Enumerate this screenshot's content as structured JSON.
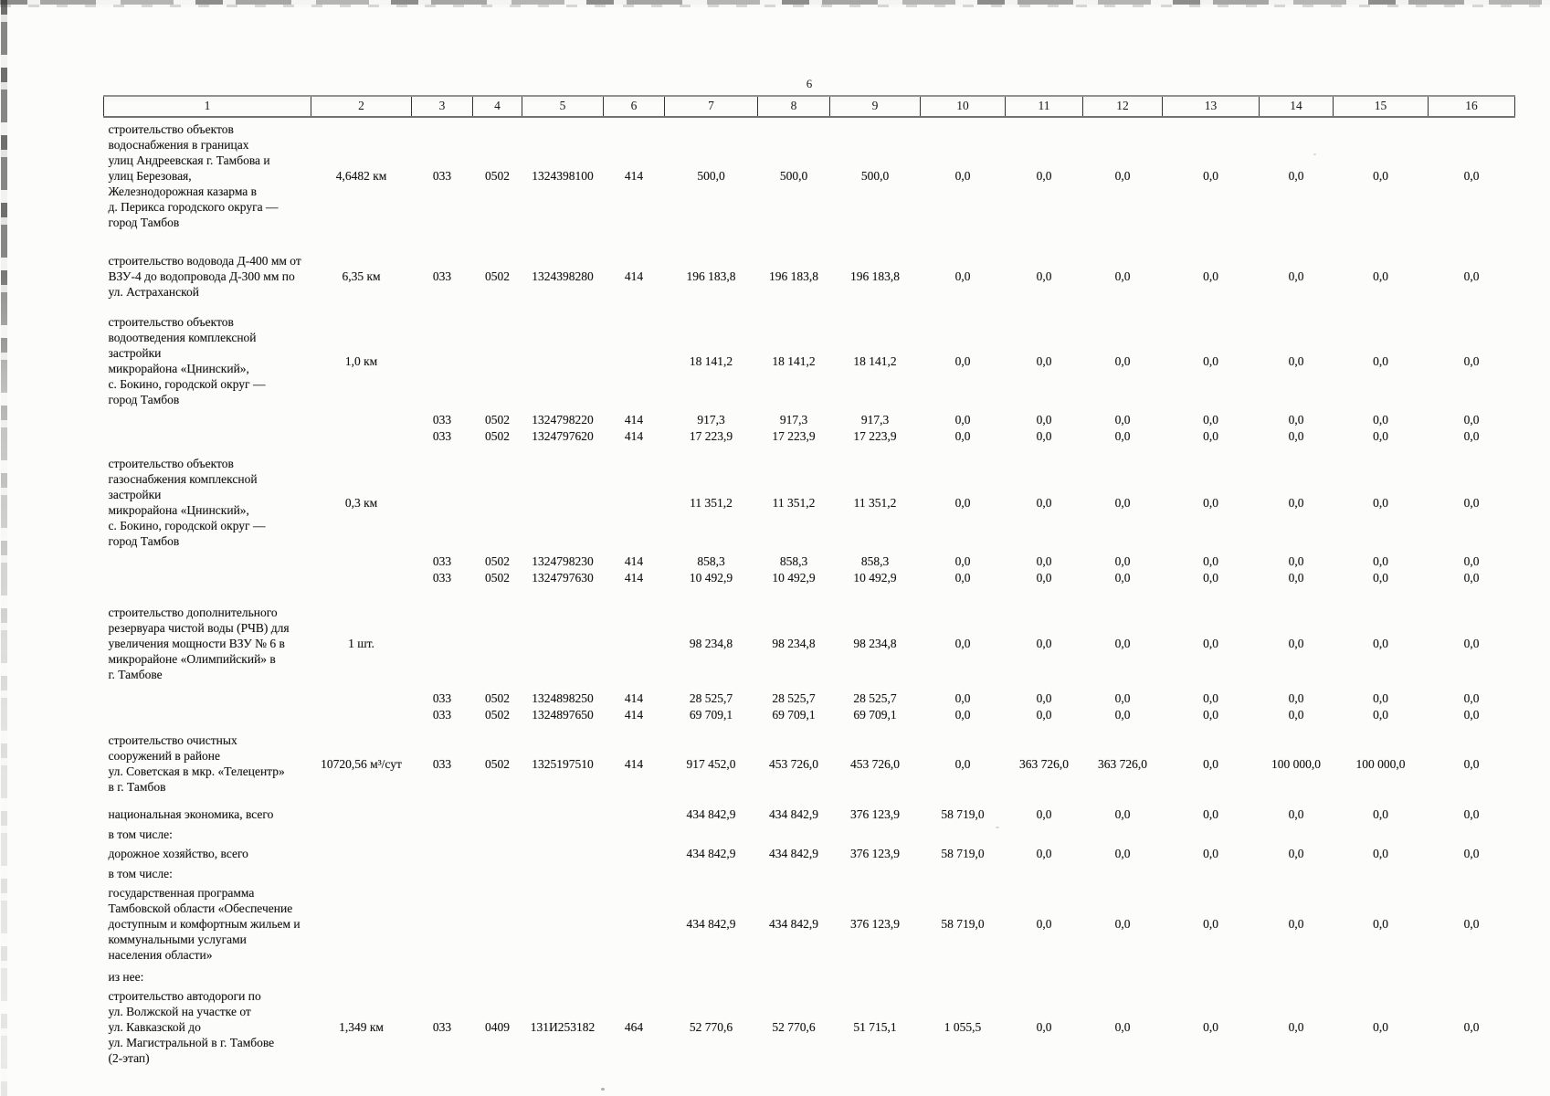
{
  "page": {
    "number": "6"
  },
  "table": {
    "column_headers": [
      "1",
      "2",
      "3",
      "4",
      "5",
      "6",
      "7",
      "8",
      "9",
      "10",
      "11",
      "12",
      "13",
      "14",
      "15",
      "16"
    ],
    "rows": [
      {
        "name": "строительство объектов\nводоснабжения в границах\nулиц Андреевская г. Тамбова и\nулиц Березовая,\nЖелезнодорожная казарма в\nд. Перикса городского округа —\nгород Тамбов",
        "qty": "4,6482 км",
        "codes": [
          "033",
          "0502",
          "1324398100",
          "414"
        ],
        "values": [
          "500,0",
          "500,0",
          "500,0",
          "0,0",
          "0,0",
          "0,0",
          "0,0",
          "0,0",
          "0,0",
          "0,0"
        ]
      },
      {
        "name": "строительство водовода Д-400 мм от\nВЗУ-4 до водопровода Д-300 мм по\nул. Астраханской",
        "qty": "6,35 км",
        "codes": [
          "033",
          "0502",
          "1324398280",
          "414"
        ],
        "values": [
          "196 183,8",
          "196 183,8",
          "196 183,8",
          "0,0",
          "0,0",
          "0,0",
          "0,0",
          "0,0",
          "0,0",
          "0,0"
        ]
      },
      {
        "name": "строительство объектов\nводоотведения комплексной\nзастройки\nмикрорайона «Цнинский»,\nс. Бокино, городской округ —\nгород Тамбов",
        "qty": "1,0 км",
        "codes": null,
        "values": [
          "18 141,2",
          "18 141,2",
          "18 141,2",
          "0,0",
          "0,0",
          "0,0",
          "0,0",
          "0,0",
          "0,0",
          "0,0"
        ]
      },
      {
        "name": null,
        "qty": null,
        "codes": [
          "033",
          "0502",
          "1324798220",
          "414"
        ],
        "values": [
          "917,3",
          "917,3",
          "917,3",
          "0,0",
          "0,0",
          "0,0",
          "0,0",
          "0,0",
          "0,0",
          "0,0"
        ]
      },
      {
        "name": null,
        "qty": null,
        "codes": [
          "033",
          "0502",
          "1324797620",
          "414"
        ],
        "values": [
          "17 223,9",
          "17 223,9",
          "17 223,9",
          "0,0",
          "0,0",
          "0,0",
          "0,0",
          "0,0",
          "0,0",
          "0,0"
        ]
      },
      {
        "name": "строительство объектов\nгазоснабжения комплексной\nзастройки\nмикрорайона «Цнинский»,\nс. Бокино, городской округ —\nгород Тамбов",
        "qty": "0,3 км",
        "codes": null,
        "values": [
          "11 351,2",
          "11 351,2",
          "11 351,2",
          "0,0",
          "0,0",
          "0,0",
          "0,0",
          "0,0",
          "0,0",
          "0,0"
        ]
      },
      {
        "name": null,
        "qty": null,
        "codes": [
          "033",
          "0502",
          "1324798230",
          "414"
        ],
        "values": [
          "858,3",
          "858,3",
          "858,3",
          "0,0",
          "0,0",
          "0,0",
          "0,0",
          "0,0",
          "0,0",
          "0,0"
        ]
      },
      {
        "name": null,
        "qty": null,
        "codes": [
          "033",
          "0502",
          "1324797630",
          "414"
        ],
        "values": [
          "10 492,9",
          "10 492,9",
          "10 492,9",
          "0,0",
          "0,0",
          "0,0",
          "0,0",
          "0,0",
          "0,0",
          "0,0"
        ]
      },
      {
        "name": "строительство дополнительного\nрезервуара чистой воды (РЧВ) для\nувеличения мощности ВЗУ № 6 в\nмикрорайоне «Олимпийский» в\nг. Тамбове",
        "qty": "1 шт.",
        "codes": null,
        "values": [
          "98 234,8",
          "98 234,8",
          "98 234,8",
          "0,0",
          "0,0",
          "0,0",
          "0,0",
          "0,0",
          "0,0",
          "0,0"
        ]
      },
      {
        "name": null,
        "qty": null,
        "codes": [
          "033",
          "0502",
          "1324898250",
          "414"
        ],
        "values": [
          "28 525,7",
          "28 525,7",
          "28 525,7",
          "0,0",
          "0,0",
          "0,0",
          "0,0",
          "0,0",
          "0,0",
          "0,0"
        ]
      },
      {
        "name": null,
        "qty": null,
        "codes": [
          "033",
          "0502",
          "1324897650",
          "414"
        ],
        "values": [
          "69 709,1",
          "69 709,1",
          "69 709,1",
          "0,0",
          "0,0",
          "0,0",
          "0,0",
          "0,0",
          "0,0",
          "0,0"
        ]
      },
      {
        "name": "строительство очистных\nсооружений в районе\nул. Советская в мкр. «Телецентр»\nв г. Тамбов",
        "qty": "10720,56 м³/сут",
        "codes": [
          "033",
          "0502",
          "1325197510",
          "414"
        ],
        "values": [
          "917 452,0",
          "453 726,0",
          "453 726,0",
          "0,0",
          "363 726,0",
          "363 726,0",
          "0,0",
          "100 000,0",
          "100 000,0",
          "0,0"
        ]
      },
      {
        "name": "национальная экономика, всего",
        "qty": null,
        "codes": null,
        "values": [
          "434 842,9",
          "434 842,9",
          "376 123,9",
          "58 719,0",
          "0,0",
          "0,0",
          "0,0",
          "0,0",
          "0,0",
          "0,0"
        ]
      },
      {
        "name": "в том числе:",
        "qty": null,
        "codes": null,
        "values": null
      },
      {
        "name": "дорожное хозяйство, всего",
        "qty": null,
        "codes": null,
        "values": [
          "434 842,9",
          "434 842,9",
          "376 123,9",
          "58 719,0",
          "0,0",
          "0,0",
          "0,0",
          "0,0",
          "0,0",
          "0,0"
        ]
      },
      {
        "name": "в том числе:",
        "qty": null,
        "codes": null,
        "values": null
      },
      {
        "name": "государственная программа\nТамбовской области «Обеспечение\nдоступным и комфортным жильем и\nкоммунальными услугами\nнаселения области»",
        "qty": null,
        "codes": null,
        "values": [
          "434 842,9",
          "434 842,9",
          "376 123,9",
          "58 719,0",
          "0,0",
          "0,0",
          "0,0",
          "0,0",
          "0,0",
          "0,0"
        ]
      },
      {
        "name": "из нее:",
        "qty": null,
        "codes": null,
        "values": null
      },
      {
        "name": "строительство автодороги по\nул. Волжской на участке от\nул. Кавказской до\nул. Магистральной в г. Тамбове\n(2-этап)",
        "qty": "1,349 км",
        "codes": [
          "033",
          "0409",
          "131И253182",
          "464"
        ],
        "values": [
          "52 770,6",
          "52 770,6",
          "51 715,1",
          "1 055,5",
          "0,0",
          "0,0",
          "0,0",
          "0,0",
          "0,0",
          "0,0"
        ]
      }
    ]
  }
}
